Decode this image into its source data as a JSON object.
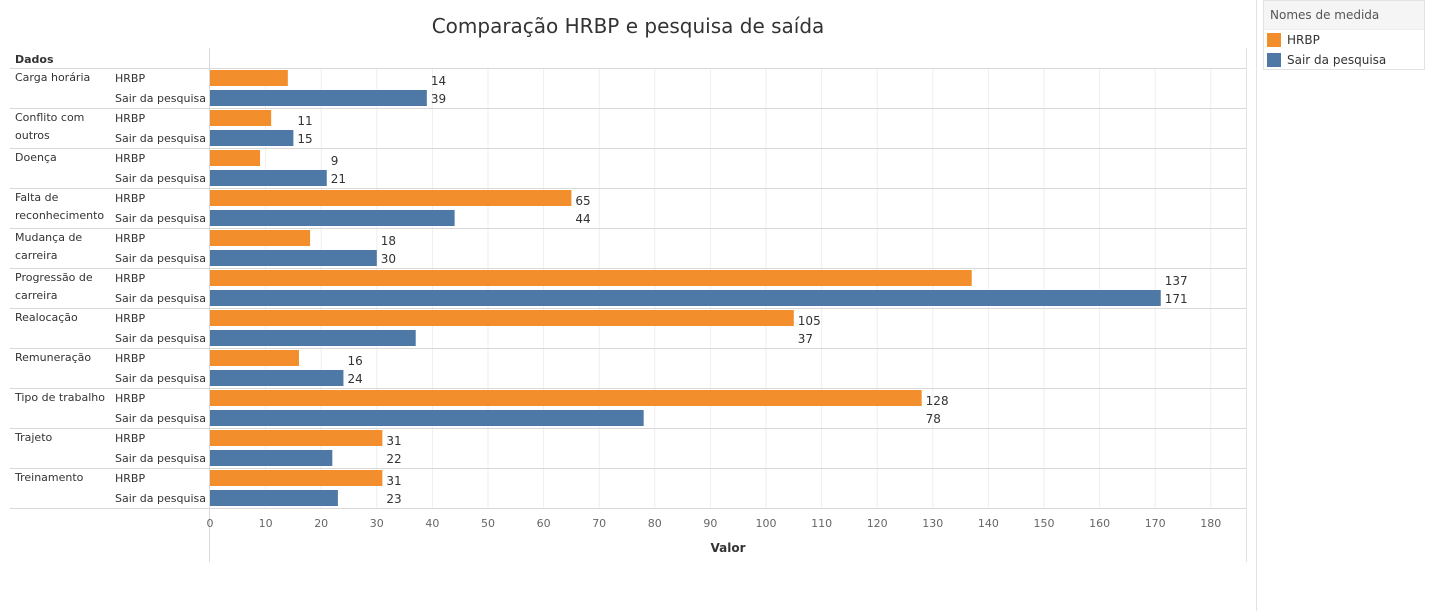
{
  "chart_data": {
    "type": "bar",
    "orientation": "horizontal",
    "title": "Comparação HRBP e pesquisa de saída",
    "row_header": "Dados",
    "xlabel": "Valor",
    "xlim": [
      0,
      185
    ],
    "xticks": [
      0,
      10,
      20,
      30,
      40,
      50,
      60,
      70,
      80,
      90,
      100,
      110,
      120,
      130,
      140,
      150,
      160,
      170,
      180
    ],
    "grid": true,
    "legend_position": "top-right",
    "categories": [
      {
        "label_lines": [
          "Carga horária"
        ]
      },
      {
        "label_lines": [
          "Conflito com",
          "outros"
        ]
      },
      {
        "label_lines": [
          "Doença"
        ]
      },
      {
        "label_lines": [
          "Falta de",
          "reconhecimento"
        ]
      },
      {
        "label_lines": [
          "Mudança de",
          "carreira"
        ]
      },
      {
        "label_lines": [
          "Progressão de",
          "carreira"
        ]
      },
      {
        "label_lines": [
          "Realocação"
        ]
      },
      {
        "label_lines": [
          "Remuneração"
        ]
      },
      {
        "label_lines": [
          "Tipo de trabalho"
        ]
      },
      {
        "label_lines": [
          "Trajeto"
        ]
      },
      {
        "label_lines": [
          "Treinamento"
        ]
      }
    ],
    "series": [
      {
        "name": "HRBP",
        "color": "#f28e2b",
        "values": [
          14,
          11,
          9,
          65,
          18,
          137,
          105,
          16,
          128,
          31,
          31
        ]
      },
      {
        "name": "Sair da pesquisa",
        "color": "#4e79a7",
        "values": [
          39,
          15,
          21,
          44,
          30,
          171,
          37,
          24,
          78,
          22,
          23
        ]
      }
    ]
  },
  "legend": {
    "title": "Nomes de medida",
    "items": [
      {
        "label": "HRBP",
        "color": "#f28e2b"
      },
      {
        "label": "Sair da pesquisa",
        "color": "#4e79a7"
      }
    ]
  }
}
